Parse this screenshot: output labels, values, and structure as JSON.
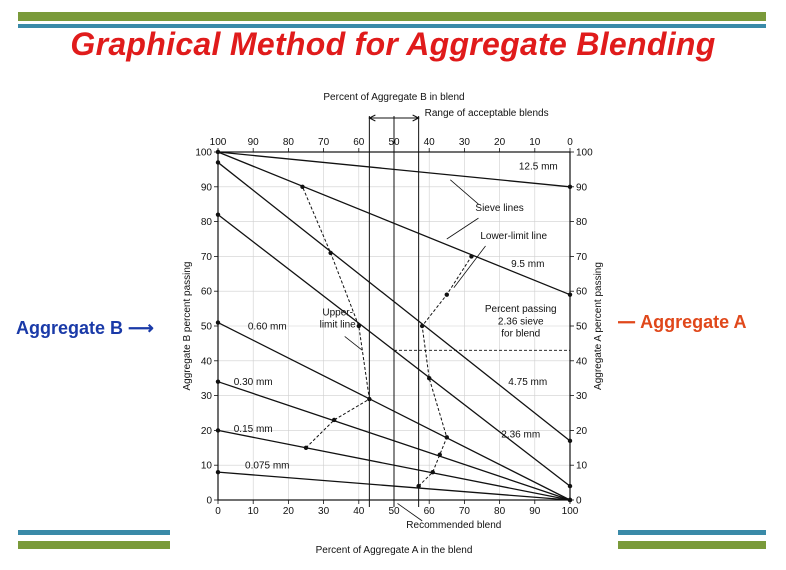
{
  "slide": {
    "title": "Graphical Method for Aggregate Blending",
    "left_label": "Aggregate B",
    "right_label": "Aggregate A",
    "colors": {
      "title": "#e01b1b",
      "left_label": "#1a3aa8",
      "right_label": "#e0481b",
      "bar_green": "#7a9a3a",
      "bar_teal": "#3a8aa8"
    }
  },
  "chart_data": {
    "type": "line",
    "top_axis_title": "Percent of Aggregate B in blend",
    "bottom_axis_title": "Percent of Aggregate A in the blend",
    "left_axis_title": "Aggregate B percent passing",
    "right_axis_title": "Aggregate A percent passing",
    "x_ticks": [
      0,
      10,
      20,
      30,
      40,
      50,
      60,
      70,
      80,
      90,
      100
    ],
    "top_ticks": [
      100,
      90,
      80,
      70,
      60,
      50,
      40,
      30,
      20,
      10,
      0
    ],
    "y_ticks": [
      0,
      10,
      20,
      30,
      40,
      50,
      60,
      70,
      80,
      90,
      100
    ],
    "xlim": [
      0,
      100
    ],
    "ylim": [
      0,
      100
    ],
    "series": [
      {
        "name": "12.5 mm",
        "b": 100,
        "a": 90
      },
      {
        "name": "9.5 mm",
        "b": 100,
        "a": 59
      },
      {
        "name": "4.75 mm",
        "b": 97,
        "a": 17
      },
      {
        "name": "2.36 mm",
        "b": 82,
        "a": 4
      },
      {
        "name": "0.60 mm",
        "b": 51,
        "a": 0
      },
      {
        "name": "0.30 mm",
        "b": 34,
        "a": 0
      },
      {
        "name": "0.15 mm",
        "b": 20,
        "a": 0
      },
      {
        "name": "0.075 mm",
        "b": 8,
        "a": 0
      }
    ],
    "upper_limit_points": [
      [
        25,
        15
      ],
      [
        33,
        23
      ],
      [
        43,
        29
      ],
      [
        40,
        50
      ],
      [
        32,
        71
      ],
      [
        24,
        90
      ]
    ],
    "lower_limit_points": [
      [
        57,
        4
      ],
      [
        61,
        8
      ],
      [
        63,
        13
      ],
      [
        65,
        18
      ],
      [
        60,
        35
      ],
      [
        58,
        50
      ],
      [
        65,
        59
      ],
      [
        72,
        70
      ]
    ],
    "vertical_lines": [
      43,
      50,
      57
    ],
    "range_span": [
      43,
      57
    ],
    "percent_passing_236": 43,
    "annotations": {
      "range": "Range of acceptable blends",
      "sieve_lines": "Sieve lines",
      "lower_limit": "Lower-limit line",
      "upper_limit_1": "Upper-",
      "upper_limit_2": "limit line",
      "percent_passing_1": "Percent passing",
      "percent_passing_2": "2.36 sieve",
      "percent_passing_3": "for blend",
      "recommended": "Recommended blend"
    }
  }
}
